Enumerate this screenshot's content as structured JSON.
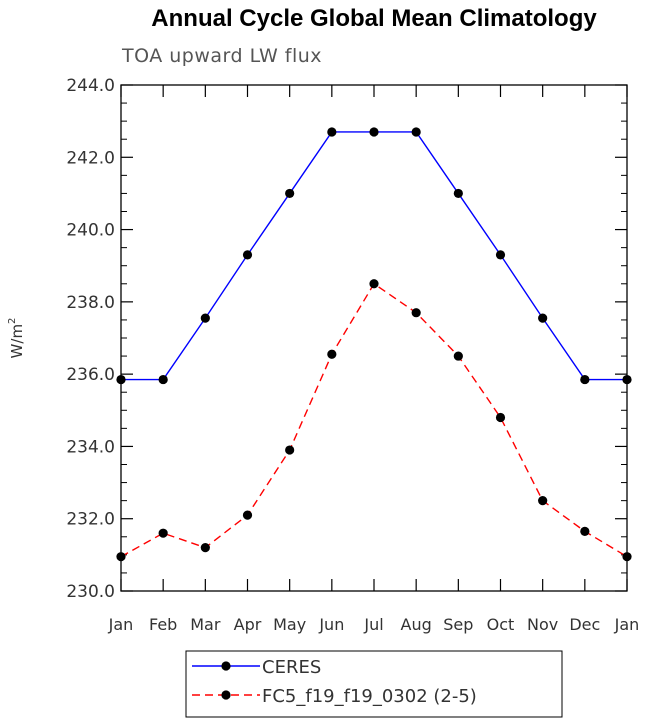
{
  "chart_data": {
    "type": "line",
    "title": "Annual Cycle Global Mean Climatology",
    "subtitle": "TOA upward LW flux",
    "ylabel": "W/m",
    "ylabel_superscript": "2",
    "xlabel": "",
    "categories": [
      "Jan",
      "Feb",
      "Mar",
      "Apr",
      "May",
      "Jun",
      "Jul",
      "Aug",
      "Sep",
      "Oct",
      "Nov",
      "Dec",
      "Jan"
    ],
    "ylim": [
      230.0,
      244.0
    ],
    "yticks": [
      "230.0",
      "232.0",
      "234.0",
      "236.0",
      "238.0",
      "240.0",
      "242.0",
      "244.0"
    ],
    "legend_position": "bottom",
    "grid": false,
    "series": [
      {
        "name": "CERES",
        "color": "#0000ff",
        "style": "solid",
        "marker": "filled-circle",
        "values": [
          235.85,
          235.85,
          237.55,
          239.3,
          241.0,
          242.7,
          242.7,
          242.7,
          241.0,
          239.3,
          237.55,
          235.85,
          235.85
        ]
      },
      {
        "name": "FC5_f19_f19_0302 (2-5)",
        "color": "#ff0000",
        "style": "dashed",
        "marker": "filled-circle",
        "values": [
          230.95,
          231.6,
          231.2,
          232.1,
          233.9,
          236.55,
          238.5,
          237.7,
          236.5,
          234.8,
          232.5,
          231.65,
          230.95
        ]
      }
    ]
  }
}
